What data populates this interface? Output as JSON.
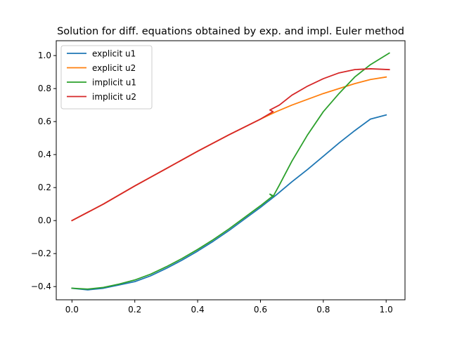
{
  "chart_data": {
    "type": "line",
    "title": "Solution for diff. equations obtained by exp. and impl. Euler method",
    "xlabel": "",
    "ylabel": "",
    "xlim": [
      -0.05,
      1.06
    ],
    "ylim": [
      -0.48,
      1.09
    ],
    "xticks": [
      0.0,
      0.2,
      0.4,
      0.6,
      0.8,
      1.0
    ],
    "xtick_labels": [
      "0.0",
      "0.2",
      "0.4",
      "0.6",
      "0.8",
      "1.0"
    ],
    "yticks": [
      -0.4,
      -0.2,
      0.0,
      0.2,
      0.4,
      0.6,
      0.8,
      1.0
    ],
    "ytick_labels": [
      "−0.4",
      "−0.2",
      "0.0",
      "0.2",
      "0.4",
      "0.6",
      "0.8",
      "1.0"
    ],
    "grid": false,
    "legend_position": "top-left",
    "series": [
      {
        "name": "explicit u1",
        "color": "#1f77b4",
        "x": [
          0.0,
          0.05,
          0.1,
          0.15,
          0.2,
          0.25,
          0.3,
          0.35,
          0.4,
          0.45,
          0.5,
          0.55,
          0.6,
          0.65,
          0.7,
          0.75,
          0.8,
          0.85,
          0.9,
          0.95,
          1.0
        ],
        "y": [
          -0.41,
          -0.42,
          -0.41,
          -0.39,
          -0.37,
          -0.335,
          -0.29,
          -0.24,
          -0.185,
          -0.125,
          -0.06,
          0.01,
          0.08,
          0.155,
          0.235,
          0.31,
          0.39,
          0.47,
          0.545,
          0.615,
          0.64
        ]
      },
      {
        "name": "explicit u2",
        "color": "#ff7f0e",
        "x": [
          0.0,
          0.1,
          0.2,
          0.3,
          0.4,
          0.5,
          0.6,
          0.65,
          0.7,
          0.75,
          0.8,
          0.85,
          0.9,
          0.95,
          1.0
        ],
        "y": [
          0.0,
          0.1,
          0.21,
          0.315,
          0.42,
          0.52,
          0.615,
          0.66,
          0.7,
          0.735,
          0.77,
          0.8,
          0.83,
          0.855,
          0.87
        ]
      },
      {
        "name": "implicit u1",
        "color": "#2ca02c",
        "x": [
          0.0,
          0.05,
          0.1,
          0.15,
          0.2,
          0.25,
          0.3,
          0.35,
          0.4,
          0.45,
          0.5,
          0.55,
          0.6,
          0.64,
          0.63,
          0.64,
          0.66,
          0.7,
          0.75,
          0.8,
          0.85,
          0.9,
          0.95,
          1.01
        ],
        "y": [
          -0.41,
          -0.415,
          -0.405,
          -0.385,
          -0.36,
          -0.325,
          -0.28,
          -0.23,
          -0.175,
          -0.115,
          -0.05,
          0.02,
          0.09,
          0.15,
          0.16,
          0.145,
          0.215,
          0.36,
          0.52,
          0.66,
          0.77,
          0.87,
          0.945,
          1.015
        ]
      },
      {
        "name": "implicit u2",
        "color": "#d62728",
        "x": [
          0.0,
          0.1,
          0.2,
          0.3,
          0.4,
          0.5,
          0.6,
          0.64,
          0.63,
          0.66,
          0.7,
          0.75,
          0.8,
          0.85,
          0.9,
          0.95,
          1.01
        ],
        "y": [
          0.0,
          0.1,
          0.21,
          0.315,
          0.42,
          0.52,
          0.615,
          0.66,
          0.67,
          0.7,
          0.76,
          0.815,
          0.86,
          0.895,
          0.915,
          0.92,
          0.915
        ]
      }
    ]
  }
}
